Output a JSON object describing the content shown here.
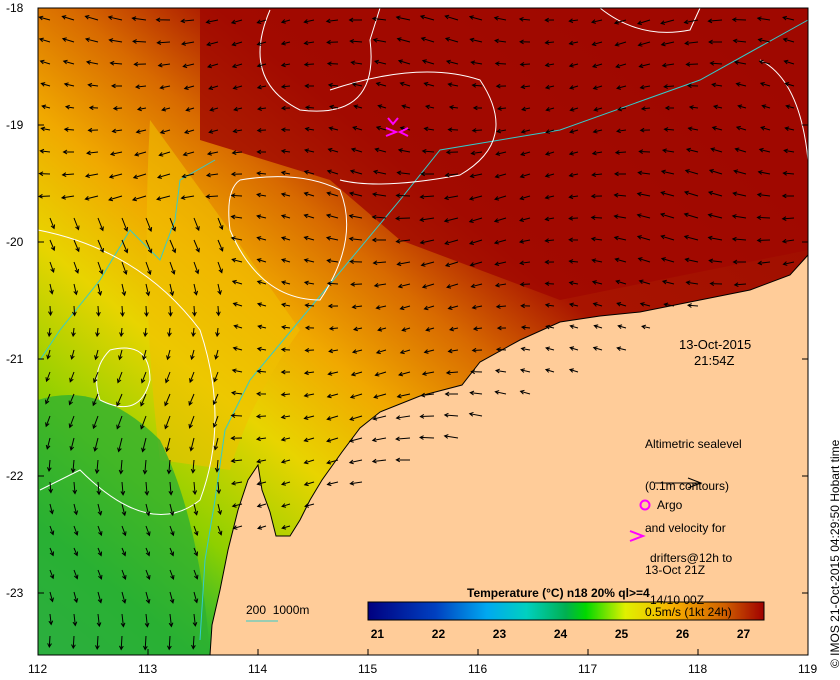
{
  "map": {
    "date": "13-Oct-2015",
    "time": "21:54Z",
    "x_ticks": [
      "112",
      "113",
      "114",
      "115",
      "116",
      "117",
      "118",
      "119"
    ],
    "y_ticks": [
      "-18",
      "-19",
      "-20",
      "-21",
      "-22",
      "-23"
    ],
    "legend": {
      "altimetry_lines": [
        "Altimetric sealevel",
        "(0.1m contours)",
        "and velocity for",
        "13-Oct 21Z",
        "0.5m/s (1kt 24h)"
      ],
      "argo_label": "Argo",
      "drifters_lines": [
        "drifters@12h to",
        "14/10 00Z"
      ],
      "isobath_label": "200  1000m"
    },
    "colorbar": {
      "title": "Temperature (°C) n18 20% ql>=4",
      "ticks": [
        "21",
        "22",
        "23",
        "24",
        "25",
        "26",
        "27"
      ],
      "range": [
        20.84,
        27.33
      ]
    },
    "credit": "© IMOS 21-Oct-2015 04:29:50 Hobart time",
    "colors": {
      "land": "#FFCC99",
      "isobath": "#33CCCC",
      "argo": "#FF00FF",
      "contour": "#FFFFFF"
    }
  }
}
